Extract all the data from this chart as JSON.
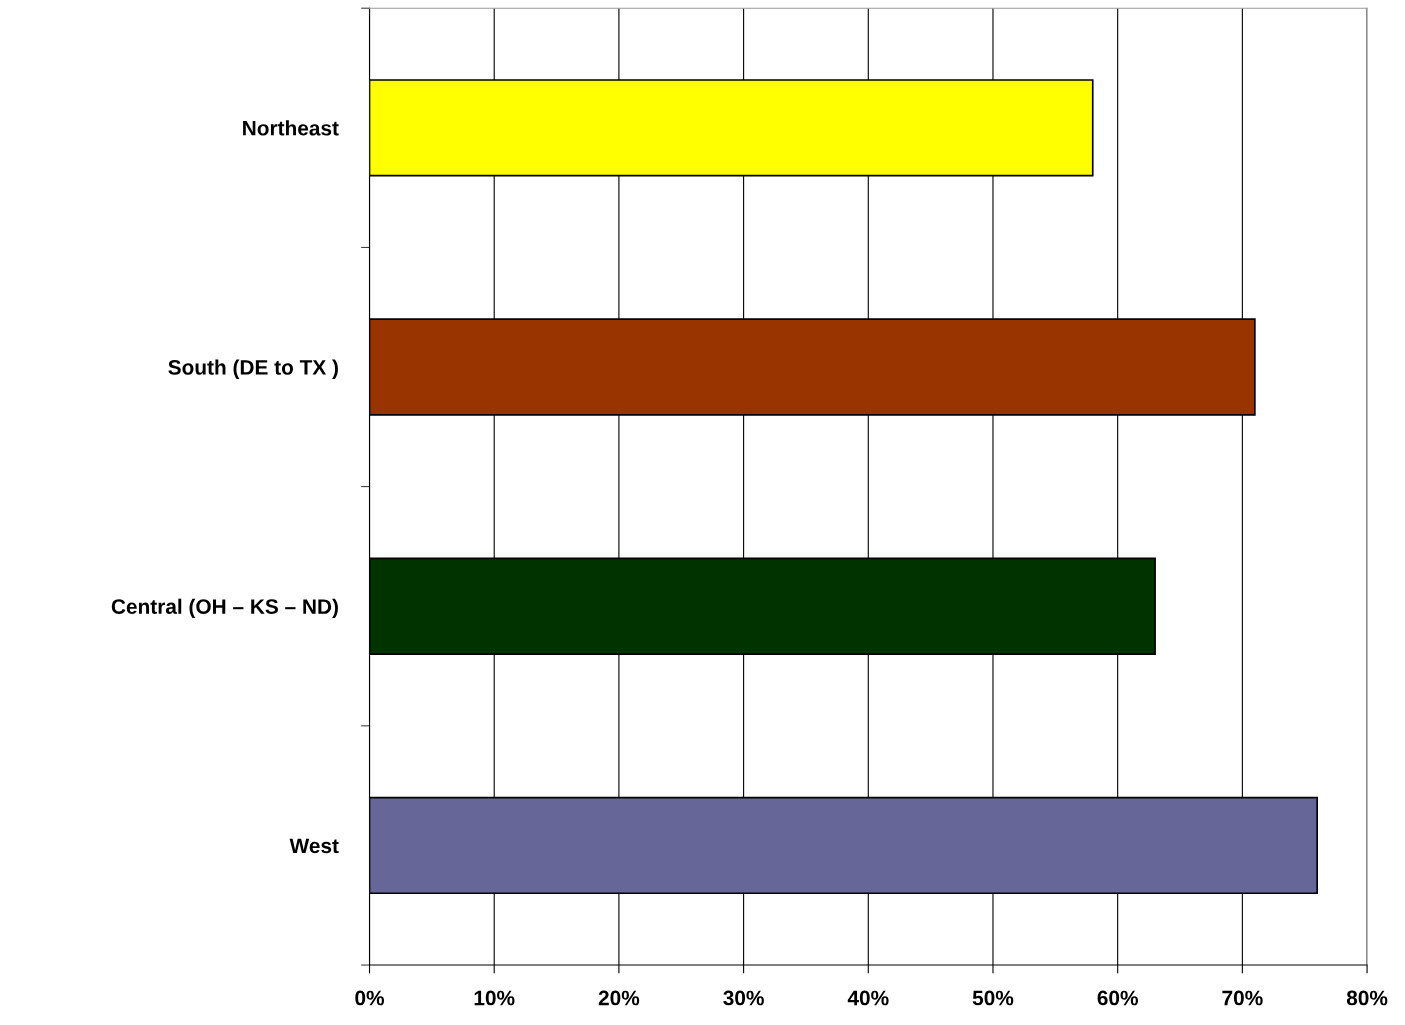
{
  "chart_data": {
    "type": "bar",
    "orientation": "horizontal",
    "categories": [
      "Northeast",
      "South (DE to TX )",
      "Central (OH – KS – ND)",
      "West"
    ],
    "values": [
      58,
      71,
      63,
      76
    ],
    "colors": [
      "#ffff00",
      "#993300",
      "#003300",
      "#666699"
    ],
    "xlim": [
      0,
      80
    ],
    "xticks": [
      {
        "value": 0,
        "label": "0%"
      },
      {
        "value": 10,
        "label": "10%"
      },
      {
        "value": 20,
        "label": "20%"
      },
      {
        "value": 30,
        "label": "30%"
      },
      {
        "value": 40,
        "label": "40%"
      },
      {
        "value": 50,
        "label": "50%"
      },
      {
        "value": 60,
        "label": "60%"
      },
      {
        "value": 70,
        "label": "70%"
      },
      {
        "value": 80,
        "label": "80%"
      }
    ],
    "grid": "x"
  }
}
